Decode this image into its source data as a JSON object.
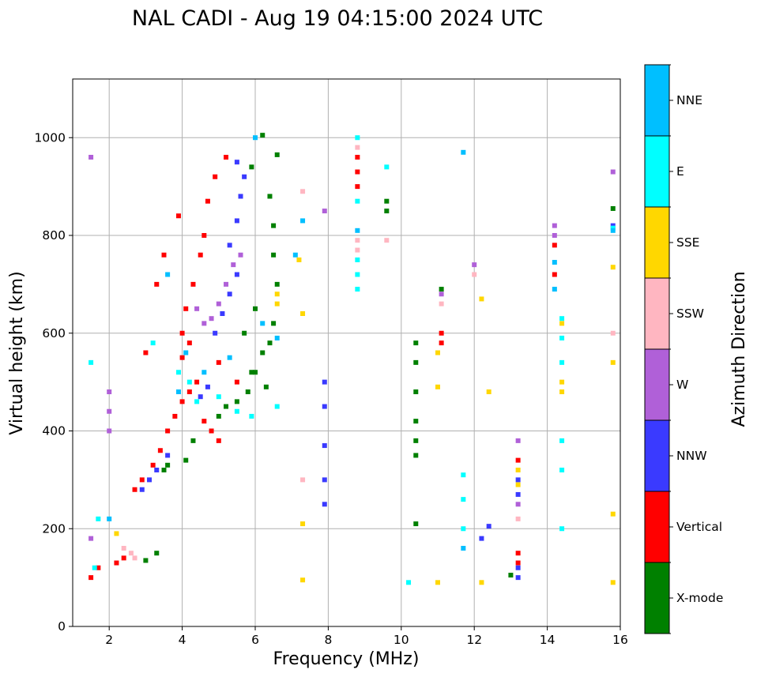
{
  "chart_data": {
    "type": "scatter",
    "title": "NAL CADI - Aug 19 04:15:00 2024 UTC",
    "xlabel": "Frequency (MHz)",
    "ylabel": "Virtual height (km)",
    "xlim": [
      1,
      16
    ],
    "ylim": [
      0,
      1120
    ],
    "xticks": [
      2,
      4,
      6,
      8,
      10,
      12,
      14,
      16
    ],
    "yticks": [
      0,
      200,
      400,
      600,
      800,
      1000
    ],
    "grid": true,
    "colorbar": {
      "title": "Azimuth Direction",
      "categories": [
        {
          "name": "X-mode",
          "color": "#008000"
        },
        {
          "name": "Vertical",
          "color": "#ff0000"
        },
        {
          "name": "NNW",
          "color": "#3a3aff"
        },
        {
          "name": "W",
          "color": "#b060d8"
        },
        {
          "name": "SSW",
          "color": "#ffb6c1"
        },
        {
          "name": "SSE",
          "color": "#ffd700"
        },
        {
          "name": "E",
          "color": "#00ffff"
        },
        {
          "name": "NNE",
          "color": "#00bfff"
        }
      ]
    },
    "series": [
      {
        "name": "X-mode",
        "points": [
          [
            3.5,
            320
          ],
          [
            3.6,
            330
          ],
          [
            3.3,
            150
          ],
          [
            3.0,
            135
          ],
          [
            4.1,
            340
          ],
          [
            4.3,
            380
          ],
          [
            5.0,
            430
          ],
          [
            5.2,
            450
          ],
          [
            5.5,
            460
          ],
          [
            5.8,
            480
          ],
          [
            6.0,
            520
          ],
          [
            6.2,
            560
          ],
          [
            6.4,
            580
          ],
          [
            6.5,
            620
          ],
          [
            6.6,
            700
          ],
          [
            6.5,
            760
          ],
          [
            6.5,
            820
          ],
          [
            6.4,
            880
          ],
          [
            6.6,
            965
          ],
          [
            6.2,
            1005
          ],
          [
            5.9,
            940
          ],
          [
            6.0,
            650
          ],
          [
            5.7,
            600
          ],
          [
            5.9,
            520
          ],
          [
            6.3,
            490
          ],
          [
            10.4,
            580
          ],
          [
            10.4,
            540
          ],
          [
            10.4,
            480
          ],
          [
            10.4,
            420
          ],
          [
            10.4,
            380
          ],
          [
            10.4,
            350
          ],
          [
            10.4,
            210
          ],
          [
            9.6,
            870
          ],
          [
            9.6,
            850
          ],
          [
            11.1,
            690
          ],
          [
            15.8,
            855
          ],
          [
            13.0,
            105
          ]
        ]
      },
      {
        "name": "Vertical",
        "points": [
          [
            1.5,
            100
          ],
          [
            1.7,
            120
          ],
          [
            2.2,
            130
          ],
          [
            2.4,
            140
          ],
          [
            2.7,
            280
          ],
          [
            2.9,
            300
          ],
          [
            3.2,
            330
          ],
          [
            3.4,
            360
          ],
          [
            3.6,
            400
          ],
          [
            3.8,
            430
          ],
          [
            4.0,
            460
          ],
          [
            4.2,
            480
          ],
          [
            4.4,
            500
          ],
          [
            4.6,
            420
          ],
          [
            4.8,
            400
          ],
          [
            5.0,
            380
          ],
          [
            4.0,
            550
          ],
          [
            4.0,
            600
          ],
          [
            4.1,
            650
          ],
          [
            4.3,
            700
          ],
          [
            4.5,
            760
          ],
          [
            4.6,
            800
          ],
          [
            4.7,
            870
          ],
          [
            4.9,
            920
          ],
          [
            5.2,
            960
          ],
          [
            3.3,
            700
          ],
          [
            3.5,
            760
          ],
          [
            3.9,
            840
          ],
          [
            3.0,
            560
          ],
          [
            4.2,
            580
          ],
          [
            5.0,
            540
          ],
          [
            5.5,
            500
          ],
          [
            8.8,
            960
          ],
          [
            8.8,
            930
          ],
          [
            8.8,
            900
          ],
          [
            11.1,
            600
          ],
          [
            11.1,
            580
          ],
          [
            13.2,
            150
          ],
          [
            13.2,
            130
          ],
          [
            13.2,
            340
          ],
          [
            14.2,
            720
          ],
          [
            14.2,
            780
          ]
        ]
      },
      {
        "name": "NNW",
        "points": [
          [
            2.9,
            280
          ],
          [
            3.1,
            300
          ],
          [
            3.3,
            320
          ],
          [
            3.6,
            350
          ],
          [
            4.5,
            470
          ],
          [
            4.7,
            490
          ],
          [
            4.9,
            600
          ],
          [
            5.1,
            640
          ],
          [
            5.3,
            680
          ],
          [
            5.5,
            720
          ],
          [
            5.3,
            780
          ],
          [
            5.5,
            830
          ],
          [
            5.6,
            880
          ],
          [
            5.7,
            920
          ],
          [
            5.5,
            950
          ],
          [
            7.9,
            500
          ],
          [
            7.9,
            450
          ],
          [
            7.9,
            370
          ],
          [
            7.9,
            300
          ],
          [
            7.9,
            250
          ],
          [
            13.2,
            100
          ],
          [
            13.2,
            120
          ],
          [
            13.2,
            300
          ],
          [
            13.2,
            270
          ],
          [
            12.4,
            205
          ],
          [
            12.2,
            180
          ],
          [
            15.8,
            820
          ]
        ]
      },
      {
        "name": "W",
        "points": [
          [
            1.5,
            960
          ],
          [
            1.5,
            180
          ],
          [
            2.0,
            440
          ],
          [
            2.0,
            400
          ],
          [
            2.0,
            480
          ],
          [
            4.4,
            650
          ],
          [
            4.6,
            620
          ],
          [
            4.8,
            630
          ],
          [
            5.0,
            660
          ],
          [
            5.2,
            700
          ],
          [
            5.4,
            740
          ],
          [
            5.6,
            760
          ],
          [
            7.9,
            850
          ],
          [
            11.1,
            680
          ],
          [
            12.0,
            740
          ],
          [
            14.2,
            820
          ],
          [
            14.2,
            800
          ],
          [
            15.8,
            930
          ],
          [
            13.2,
            380
          ],
          [
            13.2,
            250
          ]
        ]
      },
      {
        "name": "SSW",
        "points": [
          [
            2.4,
            160
          ],
          [
            2.6,
            150
          ],
          [
            2.7,
            140
          ],
          [
            8.8,
            980
          ],
          [
            8.8,
            790
          ],
          [
            8.8,
            770
          ],
          [
            9.6,
            790
          ],
          [
            11.1,
            660
          ],
          [
            12.0,
            720
          ],
          [
            13.2,
            220
          ],
          [
            15.8,
            600
          ],
          [
            7.3,
            890
          ],
          [
            7.3,
            300
          ]
        ]
      },
      {
        "name": "SSE",
        "points": [
          [
            2.2,
            190
          ],
          [
            6.6,
            680
          ],
          [
            6.6,
            660
          ],
          [
            7.2,
            750
          ],
          [
            7.3,
            640
          ],
          [
            7.3,
            210
          ],
          [
            7.3,
            95
          ],
          [
            11.0,
            560
          ],
          [
            11.0,
            490
          ],
          [
            11.0,
            90
          ],
          [
            12.2,
            90
          ],
          [
            12.4,
            480
          ],
          [
            12.2,
            670
          ],
          [
            13.2,
            320
          ],
          [
            13.2,
            290
          ],
          [
            14.4,
            500
          ],
          [
            14.4,
            480
          ],
          [
            14.4,
            620
          ],
          [
            15.8,
            540
          ],
          [
            15.8,
            735
          ],
          [
            15.8,
            230
          ],
          [
            15.8,
            90
          ]
        ]
      },
      {
        "name": "E",
        "points": [
          [
            1.5,
            540
          ],
          [
            1.7,
            220
          ],
          [
            1.6,
            120
          ],
          [
            3.2,
            580
          ],
          [
            3.9,
            520
          ],
          [
            4.2,
            500
          ],
          [
            4.4,
            460
          ],
          [
            5.0,
            470
          ],
          [
            5.5,
            440
          ],
          [
            5.9,
            430
          ],
          [
            6.6,
            450
          ],
          [
            8.8,
            1000
          ],
          [
            8.8,
            870
          ],
          [
            8.8,
            750
          ],
          [
            8.8,
            720
          ],
          [
            8.8,
            690
          ],
          [
            9.6,
            940
          ],
          [
            11.7,
            310
          ],
          [
            11.7,
            260
          ],
          [
            11.7,
            200
          ],
          [
            14.4,
            630
          ],
          [
            14.4,
            590
          ],
          [
            14.4,
            540
          ],
          [
            14.4,
            380
          ],
          [
            14.4,
            320
          ],
          [
            14.4,
            200
          ],
          [
            15.8,
            815
          ],
          [
            10.2,
            90
          ]
        ]
      },
      {
        "name": "NNE",
        "points": [
          [
            2.0,
            220
          ],
          [
            3.6,
            720
          ],
          [
            4.1,
            560
          ],
          [
            4.6,
            520
          ],
          [
            5.3,
            550
          ],
          [
            6.2,
            620
          ],
          [
            6.6,
            590
          ],
          [
            7.1,
            760
          ],
          [
            7.3,
            830
          ],
          [
            8.8,
            810
          ],
          [
            11.7,
            970
          ],
          [
            11.7,
            160
          ],
          [
            14.2,
            690
          ],
          [
            14.2,
            745
          ],
          [
            15.8,
            810
          ],
          [
            6.0,
            1000
          ],
          [
            3.9,
            480
          ]
        ]
      }
    ]
  }
}
